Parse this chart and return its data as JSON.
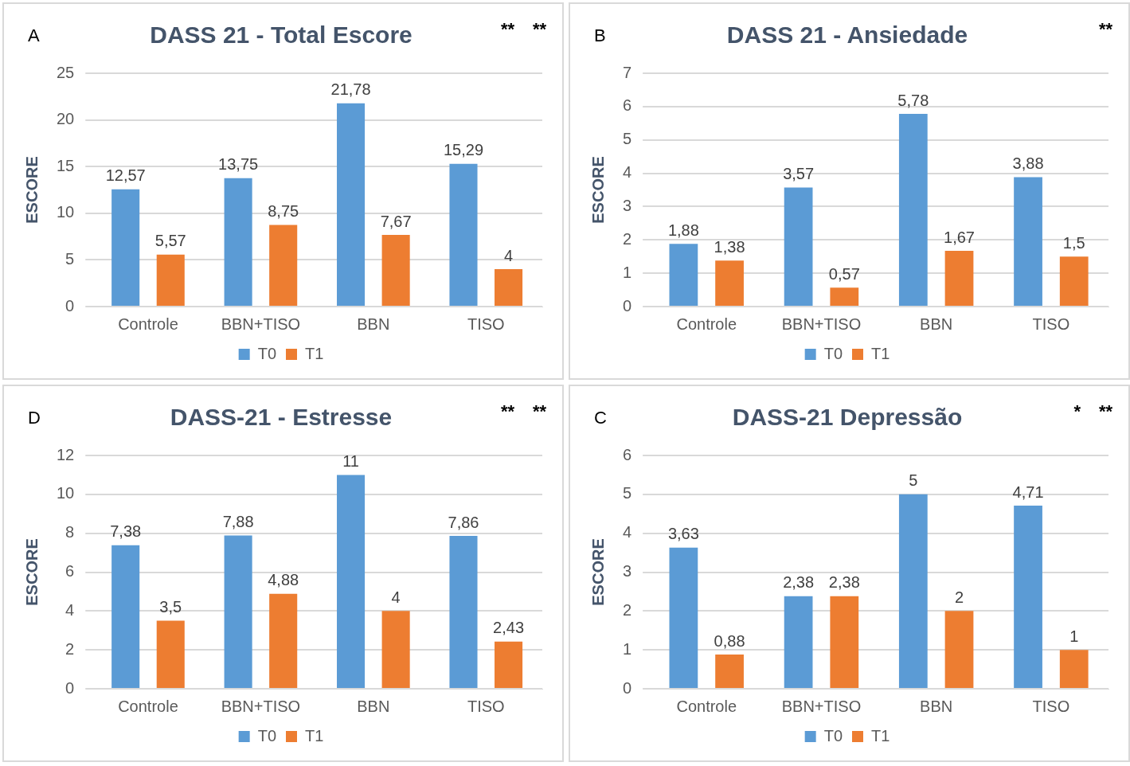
{
  "chart_data": [
    {
      "type": "bar",
      "title": "DASS 21 - Total Escore",
      "ylabel": "ESCORE",
      "categories": [
        "Controle",
        "BBN+TISO",
        "BBN",
        "TISO"
      ],
      "series": [
        {
          "name": "T0",
          "color": "#5b9bd5",
          "values": [
            12.57,
            13.75,
            21.78,
            15.29
          ],
          "value_labels": [
            "12,57",
            "13,75",
            "21,78",
            "15,29"
          ]
        },
        {
          "name": "T1",
          "color": "#ed7d31",
          "values": [
            5.57,
            8.75,
            7.67,
            4
          ],
          "value_labels": [
            "5,57",
            "8,75",
            "7,67",
            "4"
          ]
        }
      ],
      "ylim": [
        0,
        25
      ],
      "yticks": [
        0,
        5,
        10,
        15,
        20,
        25
      ],
      "grid": "y",
      "legend": "bottom",
      "annotations": [
        "A",
        "**",
        "**"
      ]
    },
    {
      "type": "bar",
      "title": "DASS 21 - Ansiedade",
      "ylabel": "ESCORE",
      "categories": [
        "Controle",
        "BBN+TISO",
        "BBN",
        "TISO"
      ],
      "series": [
        {
          "name": "T0",
          "color": "#5b9bd5",
          "values": [
            1.88,
            3.57,
            5.78,
            3.88
          ],
          "value_labels": [
            "1,88",
            "3,57",
            "5,78",
            "3,88"
          ]
        },
        {
          "name": "T1",
          "color": "#ed7d31",
          "values": [
            1.38,
            0.57,
            1.67,
            1.5
          ],
          "value_labels": [
            "1,38",
            "0,57",
            "1,67",
            "1,5"
          ]
        }
      ],
      "ylim": [
        0,
        7
      ],
      "yticks": [
        0,
        1,
        2,
        3,
        4,
        5,
        6,
        7
      ],
      "grid": "y",
      "legend": "bottom",
      "annotations": [
        "B",
        "**"
      ]
    },
    {
      "type": "bar",
      "title": "DASS-21 - Estresse",
      "ylabel": "ESCORE",
      "categories": [
        "Controle",
        "BBN+TISO",
        "BBN",
        "TISO"
      ],
      "series": [
        {
          "name": "T0",
          "color": "#5b9bd5",
          "values": [
            7.38,
            7.88,
            11,
            7.86
          ],
          "value_labels": [
            "7,38",
            "7,88",
            "11",
            "7,86"
          ]
        },
        {
          "name": "T1",
          "color": "#ed7d31",
          "values": [
            3.5,
            4.88,
            4,
            2.43
          ],
          "value_labels": [
            "3,5",
            "4,88",
            "4",
            "2,43"
          ]
        }
      ],
      "ylim": [
        0,
        12
      ],
      "yticks": [
        0,
        2,
        4,
        6,
        8,
        10,
        12
      ],
      "grid": "y",
      "legend": "bottom",
      "annotations": [
        "D",
        "**",
        "**"
      ]
    },
    {
      "type": "bar",
      "title": "DASS-21 Depressão",
      "ylabel": "ESCORE",
      "categories": [
        "Controle",
        "BBN+TISO",
        "BBN",
        "TISO"
      ],
      "series": [
        {
          "name": "T0",
          "color": "#5b9bd5",
          "values": [
            3.63,
            2.38,
            5,
            4.71
          ],
          "value_labels": [
            "3,63",
            "2,38",
            "5",
            "4,71"
          ]
        },
        {
          "name": "T1",
          "color": "#ed7d31",
          "values": [
            0.88,
            2.38,
            2,
            1
          ],
          "value_labels": [
            "0,88",
            "2,38",
            "2",
            "1"
          ]
        }
      ],
      "ylim": [
        0,
        6
      ],
      "yticks": [
        0,
        1,
        2,
        3,
        4,
        5,
        6
      ],
      "grid": "y",
      "legend": "bottom",
      "annotations": [
        "C",
        "**",
        "*"
      ]
    }
  ]
}
